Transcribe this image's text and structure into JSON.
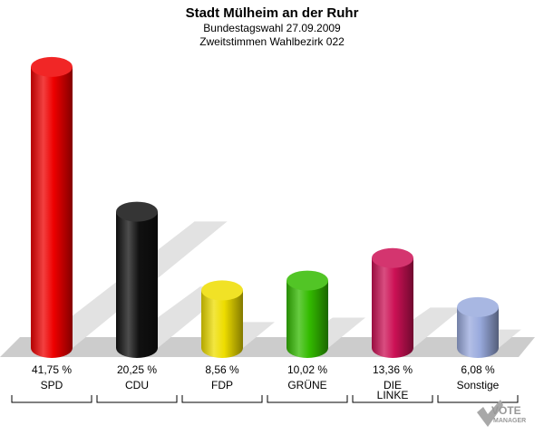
{
  "chart_data": {
    "type": "bar",
    "title": "Stadt Mülheim an der Ruhr",
    "subtitle": "Bundestagswahl 27.09.2009",
    "subtitle2": "Zweitstimmen Wahlbezirk 022",
    "categories": [
      "SPD",
      "CDU",
      "FDP",
      "GRÜNE",
      "DIE LINKE",
      "Sonstige"
    ],
    "category_lines": [
      [
        "SPD"
      ],
      [
        "CDU"
      ],
      [
        "FDP"
      ],
      [
        "GRÜNE"
      ],
      [
        "DIE",
        "LINKE"
      ],
      [
        "Sonstige"
      ]
    ],
    "values": [
      41.75,
      20.25,
      8.56,
      10.02,
      13.36,
      6.08
    ],
    "value_labels": [
      "41,75 %",
      "20,25 %",
      "8,56 %",
      "10,02 %",
      "13,36 %",
      "6,08 %"
    ],
    "colors": [
      "#ee0000",
      "#111111",
      "#eedd00",
      "#33bb00",
      "#cc1155",
      "#99aadd"
    ],
    "ylim": [
      0,
      42
    ],
    "grid": false,
    "legend": "none"
  },
  "logo": {
    "line1": "VOTE",
    "line2": "MANAGER"
  }
}
